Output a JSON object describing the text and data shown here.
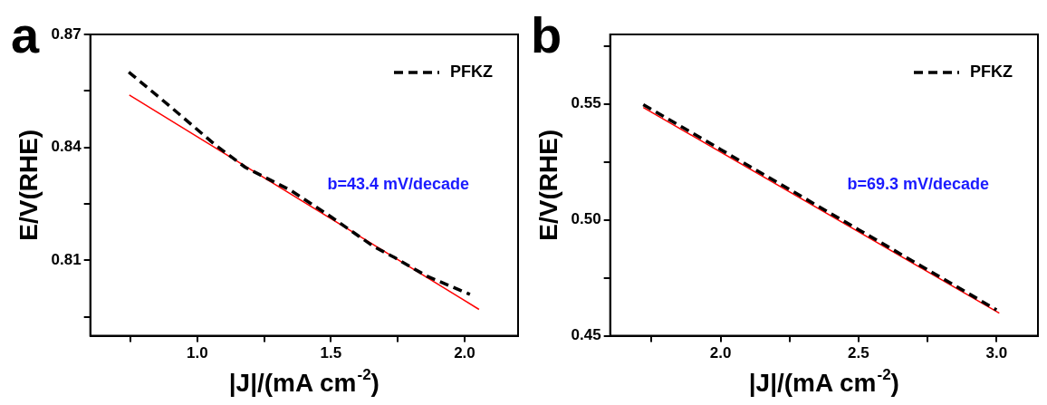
{
  "chart_data": [
    {
      "type": "line",
      "title": "a",
      "xlabel": "|J|/(mA cm$^{-2}$)",
      "ylabel": "E/V(RHE)",
      "xlim": [
        0.6,
        2.2
      ],
      "ylim": [
        0.79,
        0.87
      ],
      "xticks": [
        {
          "value": 0.75,
          "label": null
        },
        {
          "value": 1,
          "label": "1.0"
        },
        {
          "value": 1.25,
          "label": null
        },
        {
          "value": 1.5,
          "label": "1.5"
        },
        {
          "value": 1.75,
          "label": null
        },
        {
          "value": 2,
          "label": "2.0"
        }
      ],
      "yticks": [
        {
          "value": 0.795,
          "label": null
        },
        0.81,
        {
          "value": 0.825,
          "label": null
        },
        0.84,
        {
          "value": 0.855,
          "label": null
        },
        0.87
      ],
      "grid": false,
      "legend": "top right",
      "marker": "none",
      "annotations": [
        "b=43.4 mV/decade"
      ],
      "series": [
        {
          "name": "PFKZ",
          "color": "#000000",
          "line_style": "dashed",
          "x": [
            0.744,
            0.89,
            1.067,
            1.18,
            1.35,
            1.5,
            1.66,
            1.74,
            1.86,
            2.02
          ],
          "values": [
            0.86,
            0.8514,
            0.8407,
            0.8347,
            0.8286,
            0.8216,
            0.8137,
            0.8107,
            0.8058,
            0.801
          ]
        },
        {
          "color": "#ff0000",
          "line_style": "solid",
          "x": [
            0.746,
            2.054
          ],
          "values": [
            0.8539,
            0.797
          ]
        }
      ]
    },
    {
      "type": "line",
      "title": "b",
      "xlabel": "|J|/(mA cm$^{-2}$)",
      "ylabel": "E/V(RHE)",
      "xlim": [
        1.6,
        3.15
      ],
      "ylim": [
        0.45,
        0.58
      ],
      "xticks": [
        {
          "value": 1.75,
          "label": null
        },
        {
          "value": 2,
          "label": "2.0"
        },
        {
          "value": 2.25,
          "label": null
        },
        {
          "value": 2.5,
          "label": "2.5"
        },
        {
          "value": 2.75,
          "label": null
        },
        {
          "value": 3,
          "label": "3.0"
        }
      ],
      "yticks": [
        {
          "value": 0.45,
          "label": "0.45"
        },
        {
          "value": 0.475,
          "label": null
        },
        {
          "value": 0.5,
          "label": "0.50"
        },
        {
          "value": 0.525,
          "label": null
        },
        {
          "value": 0.55,
          "label": "0.55"
        },
        {
          "value": 0.575,
          "label": null
        }
      ],
      "grid": false,
      "legend": "top right",
      "marker": "none",
      "annotations": [
        "b=69.3 mV/decade"
      ],
      "series": [
        {
          "name": "PFKZ",
          "color": "#000000",
          "line_style": "dashed",
          "x": [
            1.72,
            2.0,
            2.5,
            3.0
          ],
          "values": [
            0.5497,
            0.5304,
            0.4958,
            0.4612
          ]
        },
        {
          "color": "#ff0000",
          "line_style": "solid",
          "x": [
            1.72,
            3.01
          ],
          "values": [
            0.5485,
            0.4598
          ]
        }
      ]
    }
  ]
}
